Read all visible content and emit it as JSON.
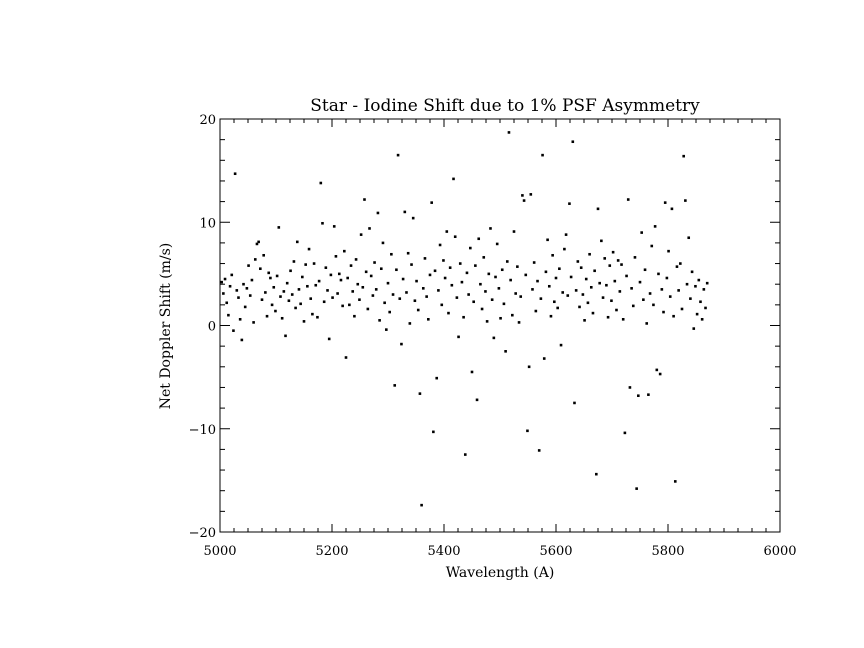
{
  "chart_data": {
    "type": "scatter",
    "title": "Star - Iodine Shift due to 1% PSF Asymmetry",
    "xlabel": "Wavelength (A)",
    "ylabel": "Net Doppler Shift (m/s)",
    "xlim": [
      5000,
      6000
    ],
    "ylim": [
      -20,
      20
    ],
    "xticks": [
      5000,
      5200,
      5400,
      5600,
      5800,
      6000
    ],
    "xtick_labels": [
      "5000",
      "5200",
      "5400",
      "5600",
      "5800",
      "6000"
    ],
    "yticks": [
      -20,
      -10,
      0,
      10,
      20
    ],
    "ytick_labels": [
      "−20",
      "−10",
      "0",
      "10",
      "20"
    ],
    "grid": false,
    "legend": "none",
    "marker_color": "#000000",
    "series": [
      {
        "points": [
          [
            5003,
            4.2
          ],
          [
            5006,
            3.1
          ],
          [
            5009,
            4.5
          ],
          [
            5012,
            2.2
          ],
          [
            5015,
            1.0
          ],
          [
            5018,
            3.8
          ],
          [
            5021,
            4.9
          ],
          [
            5024,
            -0.5
          ],
          [
            5027,
            14.7
          ],
          [
            5030,
            3.4
          ],
          [
            5033,
            2.7
          ],
          [
            5036,
            0.6
          ],
          [
            5039,
            -1.4
          ],
          [
            5042,
            4.0
          ],
          [
            5045,
            1.8
          ],
          [
            5048,
            3.6
          ],
          [
            5051,
            5.8
          ],
          [
            5054,
            2.9
          ],
          [
            5057,
            4.4
          ],
          [
            5060,
            0.3
          ],
          [
            5063,
            6.4
          ],
          [
            5066,
            7.9
          ],
          [
            5069,
            8.1
          ],
          [
            5072,
            5.5
          ],
          [
            5075,
            2.5
          ],
          [
            5078,
            6.8
          ],
          [
            5081,
            3.2
          ],
          [
            5084,
            0.9
          ],
          [
            5087,
            5.1
          ],
          [
            5090,
            4.6
          ],
          [
            5093,
            2.0
          ],
          [
            5096,
            3.7
          ],
          [
            5099,
            1.4
          ],
          [
            5102,
            4.8
          ],
          [
            5105,
            9.5
          ],
          [
            5108,
            2.8
          ],
          [
            5111,
            0.7
          ],
          [
            5114,
            3.3
          ],
          [
            5117,
            -1.0
          ],
          [
            5120,
            4.1
          ],
          [
            5123,
            2.4
          ],
          [
            5126,
            5.3
          ],
          [
            5129,
            3.0
          ],
          [
            5132,
            6.2
          ],
          [
            5135,
            1.7
          ],
          [
            5138,
            8.1
          ],
          [
            5141,
            3.5
          ],
          [
            5144,
            2.1
          ],
          [
            5147,
            4.7
          ],
          [
            5150,
            0.4
          ],
          [
            5153,
            5.9
          ],
          [
            5156,
            3.8
          ],
          [
            5159,
            7.4
          ],
          [
            5162,
            2.6
          ],
          [
            5165,
            1.1
          ],
          [
            5168,
            6.0
          ],
          [
            5171,
            3.9
          ],
          [
            5174,
            0.8
          ],
          [
            5177,
            4.3
          ],
          [
            5180,
            13.8
          ],
          [
            5183,
            9.9
          ],
          [
            5186,
            2.3
          ],
          [
            5189,
            5.6
          ],
          [
            5192,
            3.4
          ],
          [
            5195,
            -1.3
          ],
          [
            5198,
            4.9
          ],
          [
            5201,
            2.7
          ],
          [
            5204,
            9.6
          ],
          [
            5207,
            6.7
          ],
          [
            5210,
            3.1
          ],
          [
            5213,
            5.0
          ],
          [
            5216,
            4.4
          ],
          [
            5219,
            1.9
          ],
          [
            5222,
            7.2
          ],
          [
            5225,
            -3.1
          ],
          [
            5228,
            4.6
          ],
          [
            5231,
            2.0
          ],
          [
            5234,
            5.8
          ],
          [
            5237,
            3.3
          ],
          [
            5240,
            0.9
          ],
          [
            5243,
            6.4
          ],
          [
            5246,
            4.0
          ],
          [
            5249,
            2.5
          ],
          [
            5252,
            8.8
          ],
          [
            5255,
            3.7
          ],
          [
            5258,
            12.2
          ],
          [
            5261,
            5.2
          ],
          [
            5264,
            1.6
          ],
          [
            5267,
            9.4
          ],
          [
            5270,
            4.8
          ],
          [
            5273,
            2.9
          ],
          [
            5276,
            6.1
          ],
          [
            5279,
            3.5
          ],
          [
            5282,
            10.9
          ],
          [
            5285,
            0.5
          ],
          [
            5288,
            5.5
          ],
          [
            5291,
            8.0
          ],
          [
            5294,
            2.2
          ],
          [
            5297,
            -0.4
          ],
          [
            5300,
            4.1
          ],
          [
            5303,
            1.3
          ],
          [
            5306,
            6.9
          ],
          [
            5309,
            3.0
          ],
          [
            5312,
            -5.8
          ],
          [
            5315,
            5.4
          ],
          [
            5318,
            16.5
          ],
          [
            5321,
            2.6
          ],
          [
            5324,
            -1.8
          ],
          [
            5327,
            4.5
          ],
          [
            5330,
            11.0
          ],
          [
            5333,
            3.2
          ],
          [
            5336,
            7.0
          ],
          [
            5339,
            0.2
          ],
          [
            5342,
            5.9
          ],
          [
            5345,
            10.4
          ],
          [
            5348,
            2.4
          ],
          [
            5351,
            4.3
          ],
          [
            5354,
            1.5
          ],
          [
            5357,
            -6.6
          ],
          [
            5360,
            -17.4
          ],
          [
            5363,
            3.6
          ],
          [
            5366,
            6.5
          ],
          [
            5369,
            2.8
          ],
          [
            5372,
            0.6
          ],
          [
            5375,
            4.9
          ],
          [
            5378,
            11.9
          ],
          [
            5381,
            -10.3
          ],
          [
            5384,
            5.3
          ],
          [
            5387,
            -5.1
          ],
          [
            5390,
            3.4
          ],
          [
            5393,
            7.8
          ],
          [
            5396,
            2.0
          ],
          [
            5399,
            6.3
          ],
          [
            5402,
            4.6
          ],
          [
            5405,
            9.1
          ],
          [
            5408,
            1.2
          ],
          [
            5411,
            5.6
          ],
          [
            5414,
            3.9
          ],
          [
            5417,
            14.2
          ],
          [
            5420,
            8.6
          ],
          [
            5423,
            2.7
          ],
          [
            5426,
            -1.1
          ],
          [
            5429,
            6.0
          ],
          [
            5432,
            4.2
          ],
          [
            5435,
            0.8
          ],
          [
            5438,
            -12.5
          ],
          [
            5441,
            5.1
          ],
          [
            5444,
            3.0
          ],
          [
            5447,
            7.5
          ],
          [
            5450,
            -4.5
          ],
          [
            5453,
            2.3
          ],
          [
            5456,
            5.8
          ],
          [
            5459,
            -7.2
          ],
          [
            5462,
            8.4
          ],
          [
            5465,
            4.0
          ],
          [
            5468,
            1.6
          ],
          [
            5471,
            6.6
          ],
          [
            5474,
            3.3
          ],
          [
            5477,
            0.4
          ],
          [
            5480,
            5.0
          ],
          [
            5483,
            9.4
          ],
          [
            5486,
            2.5
          ],
          [
            5489,
            -1.2
          ],
          [
            5492,
            4.7
          ],
          [
            5495,
            7.9
          ],
          [
            5498,
            3.6
          ],
          [
            5501,
            0.7
          ],
          [
            5504,
            5.4
          ],
          [
            5507,
            2.1
          ],
          [
            5510,
            -2.5
          ],
          [
            5513,
            6.2
          ],
          [
            5516,
            18.7
          ],
          [
            5519,
            4.4
          ],
          [
            5522,
            1.0
          ],
          [
            5525,
            9.1
          ],
          [
            5528,
            3.1
          ],
          [
            5531,
            5.7
          ],
          [
            5534,
            0.3
          ],
          [
            5537,
            2.8
          ],
          [
            5540,
            12.6
          ],
          [
            5543,
            12.1
          ],
          [
            5546,
            4.9
          ],
          [
            5549,
            -10.2
          ],
          [
            5552,
            -4.0
          ],
          [
            5555,
            12.7
          ],
          [
            5558,
            3.5
          ],
          [
            5561,
            6.1
          ],
          [
            5564,
            1.4
          ],
          [
            5567,
            4.3
          ],
          [
            5570,
            -12.1
          ],
          [
            5573,
            2.6
          ],
          [
            5576,
            16.5
          ],
          [
            5579,
            -3.2
          ],
          [
            5582,
            5.2
          ],
          [
            5585,
            8.3
          ],
          [
            5588,
            3.8
          ],
          [
            5591,
            0.9
          ],
          [
            5594,
            6.8
          ],
          [
            5597,
            2.3
          ],
          [
            5600,
            4.6
          ],
          [
            5603,
            1.7
          ],
          [
            5606,
            5.5
          ],
          [
            5609,
            -1.9
          ],
          [
            5612,
            3.2
          ],
          [
            5615,
            7.4
          ],
          [
            5618,
            8.8
          ],
          [
            5621,
            2.9
          ],
          [
            5624,
            11.8
          ],
          [
            5627,
            4.7
          ],
          [
            5630,
            17.8
          ],
          [
            5633,
            -7.5
          ],
          [
            5636,
            3.4
          ],
          [
            5639,
            6.2
          ],
          [
            5642,
            1.8
          ],
          [
            5645,
            5.6
          ],
          [
            5648,
            3.0
          ],
          [
            5651,
            0.5
          ],
          [
            5654,
            4.5
          ],
          [
            5657,
            2.2
          ],
          [
            5660,
            6.9
          ],
          [
            5663,
            3.7
          ],
          [
            5666,
            1.2
          ],
          [
            5669,
            5.3
          ],
          [
            5672,
            -14.4
          ],
          [
            5675,
            11.3
          ],
          [
            5678,
            4.1
          ],
          [
            5681,
            8.2
          ],
          [
            5684,
            2.7
          ],
          [
            5687,
            6.5
          ],
          [
            5690,
            3.9
          ],
          [
            5693,
            0.8
          ],
          [
            5696,
            5.8
          ],
          [
            5699,
            2.4
          ],
          [
            5702,
            7.1
          ],
          [
            5705,
            4.3
          ],
          [
            5708,
            1.5
          ],
          [
            5711,
            6.3
          ],
          [
            5714,
            3.3
          ],
          [
            5717,
            5.9
          ],
          [
            5720,
            0.6
          ],
          [
            5723,
            -10.4
          ],
          [
            5726,
            4.8
          ],
          [
            5729,
            12.2
          ],
          [
            5732,
            -6.0
          ],
          [
            5735,
            3.6
          ],
          [
            5738,
            1.9
          ],
          [
            5741,
            6.6
          ],
          [
            5744,
            -15.8
          ],
          [
            5747,
            -6.8
          ],
          [
            5750,
            4.2
          ],
          [
            5753,
            9.0
          ],
          [
            5756,
            2.5
          ],
          [
            5759,
            5.4
          ],
          [
            5762,
            0.2
          ],
          [
            5765,
            -6.7
          ],
          [
            5768,
            3.1
          ],
          [
            5771,
            7.7
          ],
          [
            5774,
            2.0
          ],
          [
            5777,
            9.6
          ],
          [
            5780,
            -4.3
          ],
          [
            5783,
            5.0
          ],
          [
            5786,
            -4.7
          ],
          [
            5789,
            3.5
          ],
          [
            5792,
            1.3
          ],
          [
            5795,
            11.9
          ],
          [
            5798,
            4.6
          ],
          [
            5801,
            7.2
          ],
          [
            5804,
            2.8
          ],
          [
            5807,
            11.3
          ],
          [
            5810,
            0.9
          ],
          [
            5813,
            -15.1
          ],
          [
            5816,
            5.7
          ],
          [
            5819,
            3.4
          ],
          [
            5822,
            6.0
          ],
          [
            5825,
            1.6
          ],
          [
            5828,
            16.4
          ],
          [
            5831,
            12.1
          ],
          [
            5834,
            4.0
          ],
          [
            5837,
            8.5
          ],
          [
            5840,
            2.6
          ],
          [
            5843,
            5.2
          ],
          [
            5846,
            -0.3
          ],
          [
            5849,
            3.8
          ],
          [
            5852,
            1.1
          ],
          [
            5855,
            4.4
          ],
          [
            5858,
            2.3
          ],
          [
            5861,
            0.6
          ],
          [
            5864,
            3.5
          ],
          [
            5867,
            1.7
          ],
          [
            5870,
            4.1
          ]
        ]
      }
    ]
  }
}
